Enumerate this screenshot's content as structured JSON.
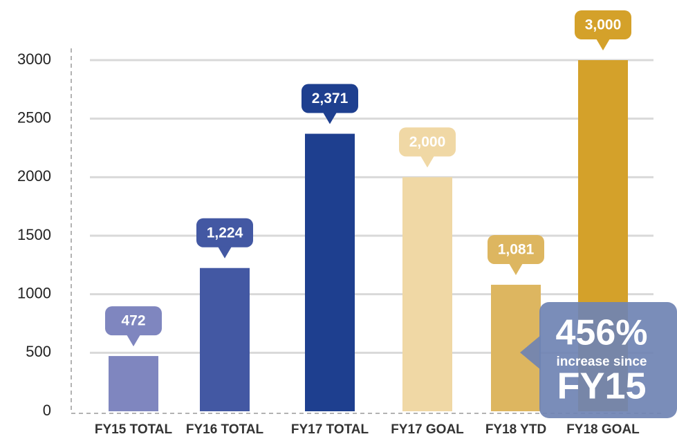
{
  "chart_data": {
    "type": "bar",
    "categories": [
      "FY15 TOTAL",
      "FY16 TOTAL",
      "FY17 TOTAL",
      "FY17 GOAL",
      "FY18 YTD",
      "FY18 GOAL"
    ],
    "values": [
      472,
      1224,
      2371,
      2000,
      1081,
      3000
    ],
    "value_labels": [
      "472",
      "1,224",
      "2,371",
      "2,000",
      "1,081",
      "3,000"
    ],
    "colors": [
      "#7f86bf",
      "#4358a3",
      "#1e3f8f",
      "#f0d8a5",
      "#ddb660",
      "#d4a12a"
    ],
    "ylim": [
      0,
      3000
    ],
    "yticks": [
      0,
      500,
      1000,
      1500,
      2000,
      2500,
      3000
    ],
    "grid": true,
    "annotations": [
      "456%",
      "increase since",
      "FY15"
    ]
  }
}
